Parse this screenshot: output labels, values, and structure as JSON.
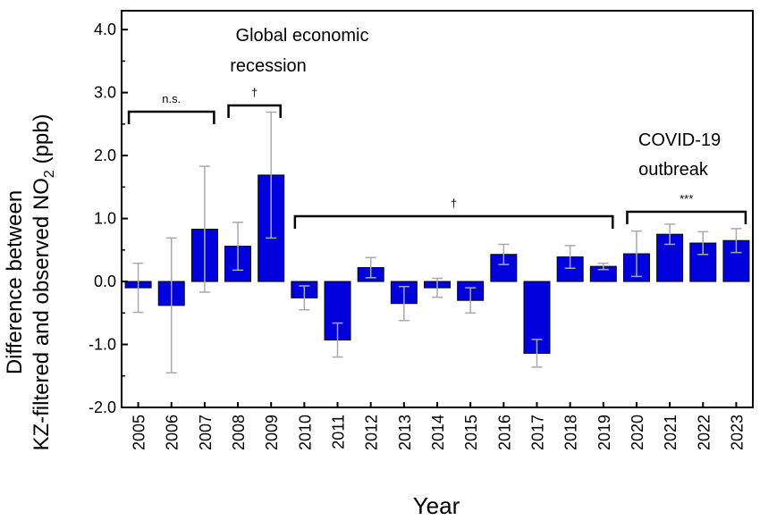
{
  "chart_data": {
    "type": "bar",
    "title": "",
    "xlabel": "Year",
    "ylabel_line1": "Difference between",
    "ylabel_line2_pre": "KZ-filtered and observed NO",
    "ylabel_line2_sub": "2",
    "ylabel_line2_post": " (ppb)",
    "ylim": [
      -2.0,
      4.3
    ],
    "yticks": [
      -2.0,
      -1.0,
      0.0,
      1.0,
      2.0,
      3.0,
      4.0
    ],
    "ytick_labels": [
      "-2.0",
      "-1.0",
      "0.0",
      "1.0",
      "2.0",
      "3.0",
      "4.0"
    ],
    "categories": [
      "2005",
      "2006",
      "2007",
      "2008",
      "2009",
      "2010",
      "2011",
      "2012",
      "2013",
      "2014",
      "2015",
      "2016",
      "2017",
      "2018",
      "2019",
      "2020",
      "2021",
      "2022",
      "2023"
    ],
    "values": [
      -0.1,
      -0.38,
      0.83,
      0.56,
      1.69,
      -0.26,
      -0.93,
      0.22,
      -0.35,
      -0.1,
      -0.3,
      0.43,
      -1.14,
      0.39,
      0.24,
      0.44,
      0.75,
      0.61,
      0.65
    ],
    "errors": [
      0.39,
      1.07,
      1.0,
      0.38,
      1.0,
      0.19,
      0.27,
      0.16,
      0.27,
      0.15,
      0.2,
      0.16,
      0.22,
      0.18,
      0.05,
      0.36,
      0.16,
      0.18,
      0.19
    ],
    "bar_color": "#0000dd",
    "error_color": "#aaaaaa",
    "annotations": [
      {
        "lines": [
          "Global economic",
          "recession"
        ]
      },
      {
        "lines": [
          "COVID-19",
          "outbreak"
        ]
      }
    ],
    "brackets": [
      {
        "from": "2005",
        "to": "2007",
        "label": "n.s."
      },
      {
        "from": "2008",
        "to": "2009",
        "label": "†"
      },
      {
        "from": "2010",
        "to": "2019",
        "label": "†"
      },
      {
        "from": "2020",
        "to": "2023",
        "label": "***"
      }
    ]
  }
}
